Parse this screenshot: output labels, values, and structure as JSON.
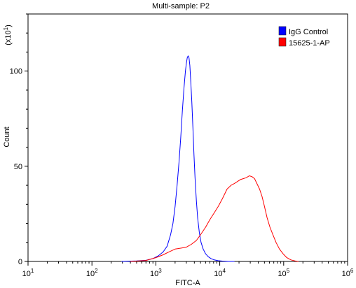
{
  "chart_data": {
    "type": "line",
    "title": "Multi-sample: P2",
    "xlabel": "FITC-A",
    "ylabel": "Count",
    "y_multiplier": "(x10",
    "y_multiplier_exp": "1",
    "x_scale": "log",
    "xlim": [
      10,
      1000000
    ],
    "ylim": [
      0,
      130
    ],
    "grid": false,
    "legend_position": "top-right",
    "x_ticks": [
      {
        "value": 10,
        "base": "10",
        "exp": "1"
      },
      {
        "value": 100,
        "base": "10",
        "exp": "2"
      },
      {
        "value": 1000,
        "base": "10",
        "exp": "3"
      },
      {
        "value": 10000,
        "base": "10",
        "exp": "4"
      },
      {
        "value": 100000,
        "base": "10",
        "exp": "5"
      },
      {
        "value": 1000000,
        "base": "10",
        "exp": "6"
      }
    ],
    "y_ticks": [
      {
        "value": 0,
        "label": "0"
      },
      {
        "value": 50,
        "label": "50"
      },
      {
        "value": 100,
        "label": "100"
      }
    ],
    "series": [
      {
        "name": "IgG Control",
        "color": "#0000ff",
        "x": [
          290,
          500,
          700,
          900,
          1100,
          1300,
          1500,
          1700,
          1850,
          2000,
          2150,
          2300,
          2450,
          2600,
          2750,
          2900,
          3000,
          3100,
          3200,
          3300,
          3400,
          3500,
          3650,
          3800,
          3950,
          4100,
          4300,
          4500,
          4800,
          5100,
          5500,
          6000,
          6600,
          7300,
          8200,
          9400,
          11000,
          13500,
          17000
        ],
        "y": [
          0,
          0.3,
          0.6,
          1.5,
          3,
          5,
          8,
          14,
          20,
          29,
          40,
          52,
          65,
          79,
          91,
          100,
          104,
          107,
          108,
          107,
          103,
          96,
          84,
          70,
          56,
          44,
          32,
          23,
          15,
          10,
          6.5,
          4,
          2.5,
          1.5,
          0.8,
          0.4,
          0.2,
          0,
          0
        ]
      },
      {
        "name": "15625-1-AP",
        "color": "#ff0000",
        "x": [
          400,
          700,
          1000,
          1300,
          1600,
          2000,
          2500,
          3000,
          3600,
          4300,
          5000,
          6000,
          7000,
          8000,
          9500,
          11000,
          13000,
          15000,
          17000,
          19000,
          21000,
          23500,
          26000,
          29000,
          32000,
          35000,
          38000,
          42000,
          46000,
          50000,
          55000,
          61000,
          68000,
          76000,
          86000,
          98000,
          112000,
          130000,
          150000,
          170000
        ],
        "y": [
          0,
          0.5,
          2,
          3.5,
          5,
          6.5,
          7,
          7.5,
          9,
          11,
          14,
          18,
          22,
          25,
          29,
          33,
          38,
          40,
          41,
          42,
          43,
          43.5,
          44,
          45,
          44.5,
          43.5,
          41,
          38,
          34,
          29,
          23,
          18,
          14,
          10,
          6.5,
          4,
          2,
          0.8,
          0.3,
          0
        ]
      }
    ]
  }
}
